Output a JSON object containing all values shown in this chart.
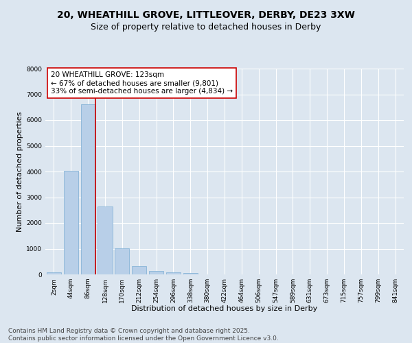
{
  "title_line1": "20, WHEATHILL GROVE, LITTLEOVER, DERBY, DE23 3XW",
  "title_line2": "Size of property relative to detached houses in Derby",
  "xlabel": "Distribution of detached houses by size in Derby",
  "ylabel": "Number of detached properties",
  "categories": [
    "2sqm",
    "44sqm",
    "86sqm",
    "128sqm",
    "170sqm",
    "212sqm",
    "254sqm",
    "296sqm",
    "338sqm",
    "380sqm",
    "422sqm",
    "464sqm",
    "506sqm",
    "547sqm",
    "589sqm",
    "631sqm",
    "673sqm",
    "715sqm",
    "757sqm",
    "799sqm",
    "841sqm"
  ],
  "values": [
    70,
    4040,
    6620,
    2650,
    1010,
    330,
    125,
    80,
    55,
    0,
    0,
    0,
    0,
    0,
    0,
    0,
    0,
    0,
    0,
    0,
    0
  ],
  "bar_color": "#b8cfe8",
  "bar_edge_color": "#7aadd4",
  "vline_color": "#cc0000",
  "vline_x": 2.45,
  "annotation_text": "20 WHEATHILL GROVE: 123sqm\n← 67% of detached houses are smaller (9,801)\n33% of semi-detached houses are larger (4,834) →",
  "annotation_box_color": "#ffffff",
  "annotation_box_edge": "#cc0000",
  "ylim": [
    0,
    8000
  ],
  "yticks": [
    0,
    1000,
    2000,
    3000,
    4000,
    5000,
    6000,
    7000,
    8000
  ],
  "bg_color": "#dce6f0",
  "plot_bg_color": "#dce6f0",
  "grid_color": "#ffffff",
  "footer_line1": "Contains HM Land Registry data © Crown copyright and database right 2025.",
  "footer_line2": "Contains public sector information licensed under the Open Government Licence v3.0.",
  "title_fontsize": 10,
  "subtitle_fontsize": 9,
  "axis_label_fontsize": 8,
  "tick_fontsize": 6.5,
  "annotation_fontsize": 7.5,
  "footer_fontsize": 6.5
}
